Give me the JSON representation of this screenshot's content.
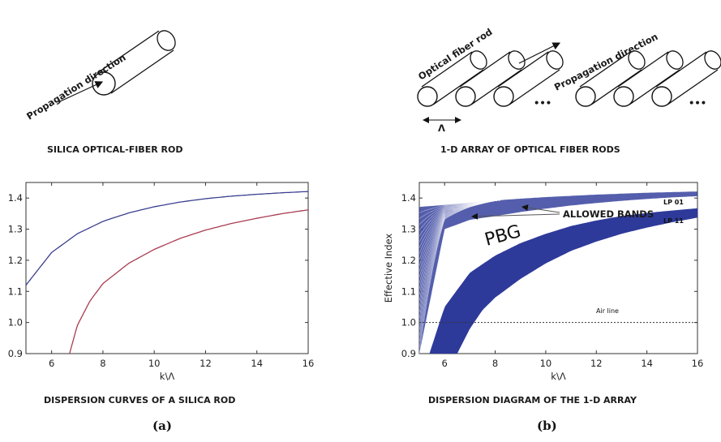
{
  "figure": {
    "left": {
      "rod_label": "Propagation direction",
      "caption": "SILICA  OPTICAL-FIBER ROD",
      "plot_title": "DISPERSION CURVES OF A SILICA ROD",
      "panel": "(a)"
    },
    "right": {
      "rod_label": "Optical fiber rod",
      "dir_label": "Propagation direction",
      "pitch_symbol": "Λ",
      "ellipsis": "•••",
      "caption": "1-D ARRAY OF OPTICAL FIBER RODS",
      "plot_title": "DISPERSION DIAGRAM OF THE 1-D ARRAY",
      "panel": "(b)",
      "pbg": "PBG",
      "allowed_bands": "ALLOWED BANDS",
      "air_line": "Air line",
      "lp01": "LP 01",
      "lp11": "LP 11"
    }
  },
  "chart_data": [
    {
      "type": "line",
      "xlabel": "k\\Λ",
      "ylabel": "Effective Index",
      "xlim": [
        5,
        16
      ],
      "ylim": [
        0.9,
        1.45
      ],
      "xticks": [
        6,
        8,
        10,
        12,
        14,
        16
      ],
      "yticks": [
        0.9,
        1.0,
        1.1,
        1.2,
        1.3,
        1.4
      ],
      "grid": false,
      "series": [
        {
          "color": "#3a3f8f",
          "x": [
            5,
            6,
            7,
            8,
            9,
            10,
            11,
            12,
            13,
            14,
            15,
            16
          ],
          "y": [
            1.12,
            1.225,
            1.285,
            1.325,
            1.352,
            1.372,
            1.387,
            1.398,
            1.406,
            1.412,
            1.417,
            1.421
          ]
        },
        {
          "color": "#a83d52",
          "x": [
            6.7,
            7,
            7.5,
            8,
            9,
            10,
            11,
            12,
            13,
            14,
            15,
            16
          ],
          "y": [
            0.9,
            0.99,
            1.07,
            1.125,
            1.19,
            1.235,
            1.27,
            1.297,
            1.318,
            1.335,
            1.35,
            1.362
          ]
        }
      ]
    },
    {
      "type": "line",
      "xlabel": "k\\Λ",
      "ylabel": "Effective Index",
      "xlim": [
        5,
        16
      ],
      "ylim": [
        0.9,
        1.45
      ],
      "xticks": [
        6,
        8,
        10,
        12,
        14,
        16
      ],
      "yticks": [
        0.9,
        1.0,
        1.1,
        1.2,
        1.3,
        1.4
      ],
      "grid": false,
      "bands": [
        {
          "name": "LP 01",
          "color": "#2e3a9a",
          "upper_x": [
            5,
            6,
            7,
            8,
            9,
            10,
            11,
            12,
            13,
            14,
            15,
            16
          ],
          "upper_y": [
            1.372,
            1.378,
            1.385,
            1.392,
            1.398,
            1.403,
            1.407,
            1.411,
            1.414,
            1.417,
            1.419,
            1.421
          ],
          "lower_x": [
            5,
            6,
            7,
            8,
            9,
            10,
            11,
            12,
            13,
            14,
            15,
            16
          ],
          "lower_y": [
            0.9,
            1.3,
            1.33,
            1.342,
            1.355,
            1.366,
            1.376,
            1.384,
            1.391,
            1.397,
            1.402,
            1.406
          ]
        },
        {
          "name": "LP 11",
          "color": "#2e3a9a",
          "upper_x": [
            5.4,
            6,
            7,
            8,
            9,
            10,
            11,
            12,
            13,
            14,
            15,
            16
          ],
          "upper_y": [
            0.9,
            1.05,
            1.16,
            1.215,
            1.255,
            1.285,
            1.31,
            1.328,
            1.342,
            1.352,
            1.36,
            1.367
          ],
          "lower_x": [
            6.5,
            7,
            7.5,
            8,
            9,
            10,
            11,
            12,
            13,
            14,
            15,
            16
          ],
          "lower_y": [
            0.9,
            0.98,
            1.04,
            1.08,
            1.14,
            1.19,
            1.23,
            1.26,
            1.285,
            1.305,
            1.322,
            1.337
          ]
        }
      ],
      "air_line": 1.0
    }
  ]
}
